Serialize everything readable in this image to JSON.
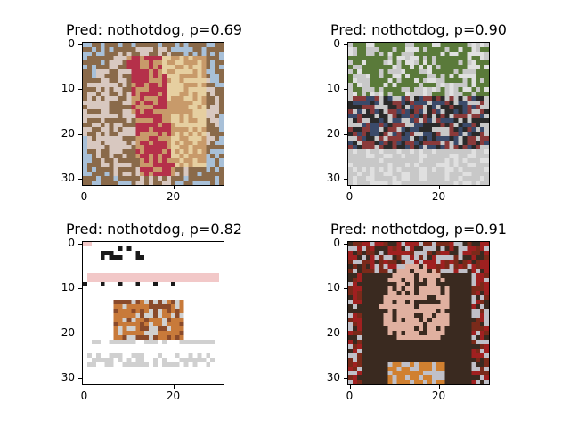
{
  "panels": [
    {
      "title": "Pred: nothotdog, p=0.69",
      "subject": "hot dog with fries on a plate",
      "yticks": [
        "0",
        "10",
        "20",
        "30"
      ],
      "xticks": [
        "0",
        "20"
      ],
      "palette": [
        "#c89a6a",
        "#b5304a",
        "#e6cfa0",
        "#8a6a4a",
        "#d8c8c0",
        "#a8c0d8"
      ]
    },
    {
      "title": "Pred: nothotdog, p=0.90",
      "subject": "group of people in front of trees and building",
      "yticks": [
        "0",
        "10",
        "20",
        "30"
      ],
      "xticks": [
        "0",
        "20"
      ],
      "palette": [
        "#5a7a3a",
        "#c8c8c8",
        "#3a4a6a",
        "#8a3a3a",
        "#e0e0e0",
        "#2a2a2a"
      ]
    },
    {
      "title": "Pred: nothotdog, p=0.82",
      "subject": "web page with a sandwich photo",
      "yticks": [
        "0",
        "10",
        "20",
        "30"
      ],
      "xticks": [
        "0",
        "20"
      ],
      "palette": [
        "#ffffff",
        "#f2c8c8",
        "#1a1a1a",
        "#c87a3a",
        "#d0d0d0",
        "#8a4a2a"
      ]
    },
    {
      "title": "Pred: nothotdog, p=0.91",
      "subject": "woman with a plate of food",
      "yticks": [
        "0",
        "10",
        "20",
        "30"
      ],
      "xticks": [
        "0",
        "20"
      ],
      "palette": [
        "#7a2a1a",
        "#3a2a20",
        "#e0b0a0",
        "#d08030",
        "#c0c0c8",
        "#a02020"
      ]
    }
  ]
}
